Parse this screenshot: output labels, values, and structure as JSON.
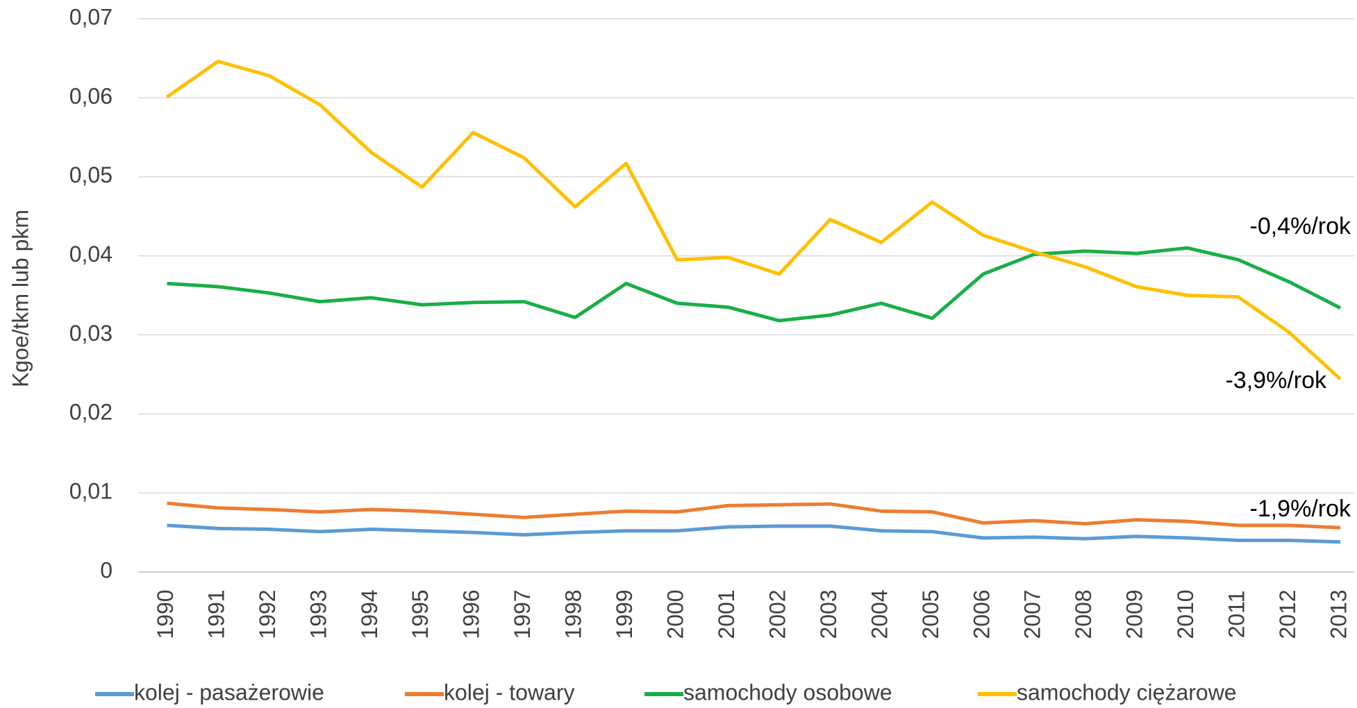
{
  "chart_data": {
    "type": "line",
    "y_label": "Kgoe/tkm lub pkm",
    "categories": [
      "1990",
      "1991",
      "1992",
      "1993",
      "1994",
      "1995",
      "1996",
      "1997",
      "1998",
      "1999",
      "2000",
      "2001",
      "2002",
      "2003",
      "2004",
      "2005",
      "2006",
      "2007",
      "2008",
      "2009",
      "2010",
      "2011",
      "2012",
      "2013"
    ],
    "series": [
      {
        "name": "kolej - pasażerowie",
        "color": "#5b9bd5",
        "values": [
          0.0059,
          0.0055,
          0.0054,
          0.0051,
          0.0054,
          0.0052,
          0.005,
          0.0047,
          0.005,
          0.0052,
          0.0052,
          0.0057,
          0.0058,
          0.0058,
          0.0052,
          0.0051,
          0.0043,
          0.0044,
          0.0042,
          0.0045,
          0.0043,
          0.004,
          0.004,
          0.0038
        ]
      },
      {
        "name": "kolej - towary",
        "color": "#ed7d31",
        "values": [
          0.0087,
          0.0081,
          0.0079,
          0.0076,
          0.0079,
          0.0077,
          0.0073,
          0.0069,
          0.0073,
          0.0077,
          0.0076,
          0.0084,
          0.0085,
          0.0086,
          0.0077,
          0.0076,
          0.0062,
          0.0065,
          0.0061,
          0.0066,
          0.0064,
          0.0059,
          0.0059,
          0.0056
        ]
      },
      {
        "name": "samochody osobowe",
        "color": "#1aae48",
        "values": [
          0.0365,
          0.0361,
          0.0353,
          0.0342,
          0.0347,
          0.0338,
          0.0341,
          0.0342,
          0.0322,
          0.0365,
          0.034,
          0.0335,
          0.0318,
          0.0325,
          0.034,
          0.0321,
          0.0377,
          0.0402,
          0.0406,
          0.0403,
          0.041,
          0.0395,
          0.0367,
          0.0334
        ]
      },
      {
        "name": "samochody ciężarowe",
        "color": "#ffc000",
        "values": [
          0.0601,
          0.0646,
          0.0628,
          0.0591,
          0.0531,
          0.0487,
          0.0556,
          0.0524,
          0.0462,
          0.0517,
          0.0395,
          0.0398,
          0.0377,
          0.0446,
          0.0417,
          0.0468,
          0.0426,
          0.0405,
          0.0386,
          0.0361,
          0.035,
          0.0348,
          0.0303,
          0.0244
        ]
      }
    ],
    "annotations": [
      "-0,4%/rok",
      "-3,9%/rok",
      "-1,9%/rok"
    ],
    "ylim": [
      0,
      0.07
    ],
    "yticks": [
      0,
      {
        "value": 0.01,
        "label": "0,01"
      },
      {
        "value": 0.02,
        "label": "0,02"
      },
      {
        "value": 0.03,
        "label": "0,03"
      },
      {
        "value": 0.04,
        "label": "0,04"
      },
      {
        "value": 0.05,
        "label": "0,05"
      },
      {
        "value": 0.06,
        "label": "0,06"
      },
      {
        "value": 0.07,
        "label": "0,07"
      }
    ],
    "grid": true
  }
}
